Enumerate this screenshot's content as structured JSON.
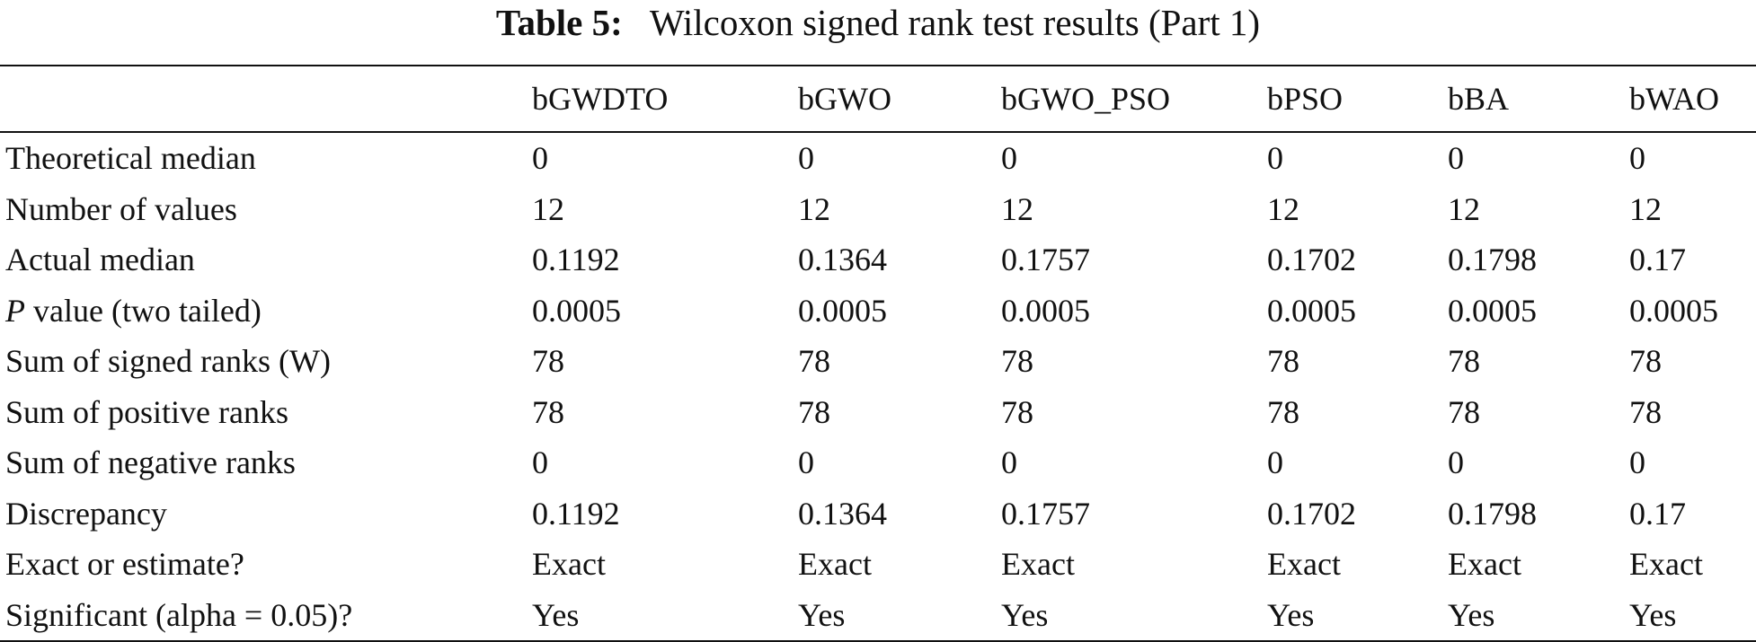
{
  "caption": {
    "label": "Table 5:",
    "text": "Wilcoxon signed rank test results (Part 1)"
  },
  "table": {
    "columns": [
      "",
      "bGWDTO",
      "bGWO",
      "bGWO_PSO",
      "bPSO",
      "bBA",
      "bWAO"
    ],
    "rows": [
      {
        "label": "Theoretical median",
        "values": [
          "0",
          "0",
          "0",
          "0",
          "0",
          "0"
        ]
      },
      {
        "label": "Number of values",
        "values": [
          "12",
          "12",
          "12",
          "12",
          "12",
          "12"
        ]
      },
      {
        "label": "Actual median",
        "values": [
          "0.1192",
          "0.1364",
          "0.1757",
          "0.1702",
          "0.1798",
          "0.17"
        ]
      },
      {
        "label_italic": "P",
        "label": "value (two tailed)",
        "values": [
          "0.0005",
          "0.0005",
          "0.0005",
          "0.0005",
          "0.0005",
          "0.0005"
        ]
      },
      {
        "label": "Sum of signed ranks (W)",
        "values": [
          "78",
          "78",
          "78",
          "78",
          "78",
          "78"
        ]
      },
      {
        "label": "Sum of positive ranks",
        "values": [
          "78",
          "78",
          "78",
          "78",
          "78",
          "78"
        ]
      },
      {
        "label": "Sum of negative ranks",
        "values": [
          "0",
          "0",
          "0",
          "0",
          "0",
          "0"
        ]
      },
      {
        "label": "Discrepancy",
        "values": [
          "0.1192",
          "0.1364",
          "0.1757",
          "0.1702",
          "0.1798",
          "0.17"
        ]
      },
      {
        "label": "Exact or estimate?",
        "values": [
          "Exact",
          "Exact",
          "Exact",
          "Exact",
          "Exact",
          "Exact"
        ]
      },
      {
        "label": "Significant (alpha = 0.05)?",
        "values": [
          "Yes",
          "Yes",
          "Yes",
          "Yes",
          "Yes",
          "Yes"
        ]
      }
    ]
  }
}
